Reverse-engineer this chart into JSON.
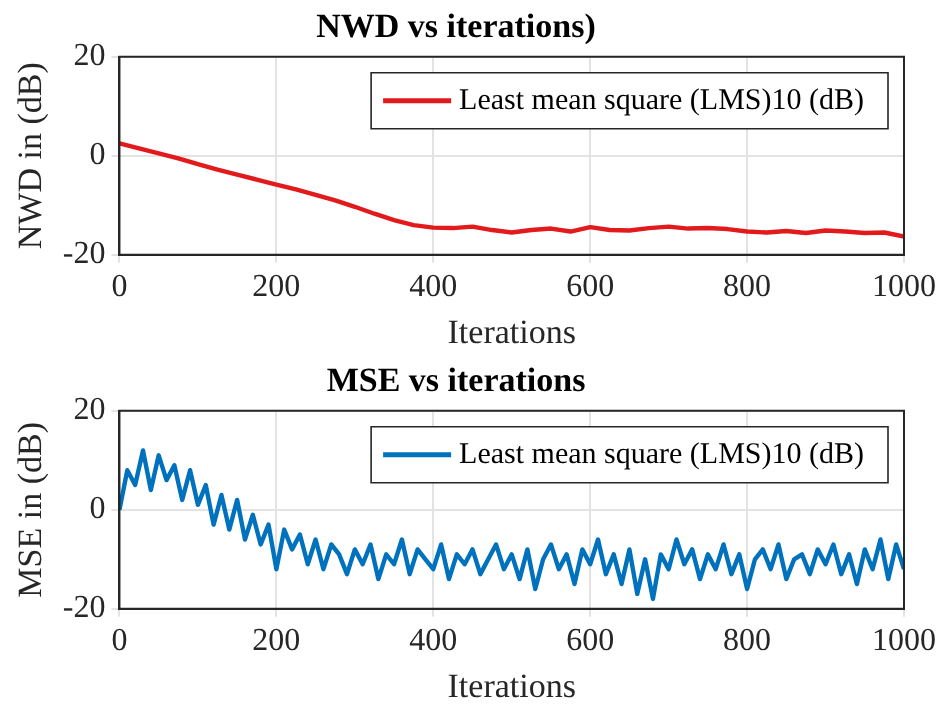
{
  "chart_data": [
    {
      "type": "line",
      "title": "NWD vs iterations)",
      "xlabel": "Iterations",
      "ylabel": "NWD in (dB)",
      "xlim": [
        0,
        1000
      ],
      "xticks": [
        0,
        200,
        400,
        600,
        800,
        1000
      ],
      "ylim": [
        -20,
        20
      ],
      "yticks": [
        -20,
        0,
        20
      ],
      "grid": true,
      "legend": "top right",
      "marker": "none",
      "line_style": "solid",
      "x": [
        0,
        25,
        50,
        75,
        100,
        125,
        150,
        175,
        200,
        225,
        250,
        275,
        300,
        325,
        350,
        375,
        400,
        425,
        450,
        475,
        500,
        525,
        550,
        575,
        600,
        625,
        650,
        675,
        700,
        725,
        750,
        775,
        800,
        825,
        850,
        875,
        900,
        925,
        950,
        975,
        1000
      ],
      "series": [
        {
          "name": "Least mean square (LMS)10 (dB)",
          "color": "#e31a1c",
          "values": [
            2.5,
            1.5,
            0.5,
            -0.5,
            -1.7,
            -2.8,
            -3.8,
            -4.8,
            -5.8,
            -6.8,
            -7.9,
            -9,
            -10.3,
            -11.7,
            -13,
            -14,
            -14.5,
            -14.6,
            -14.3,
            -15,
            -15.5,
            -15,
            -14.7,
            -15.3,
            -14.4,
            -15,
            -15.1,
            -14.6,
            -14.3,
            -14.7,
            -14.6,
            -14.8,
            -15.3,
            -15.5,
            -15.2,
            -15.6,
            -15.1,
            -15.3,
            -15.6,
            -15.5,
            -16.3
          ]
        }
      ]
    },
    {
      "type": "line",
      "title": "MSE vs iterations",
      "xlabel": "Iterations",
      "ylabel": "MSE in (dB)",
      "xlim": [
        0,
        1000
      ],
      "xticks": [
        0,
        200,
        400,
        600,
        800,
        1000
      ],
      "ylim": [
        -20,
        20
      ],
      "yticks": [
        -20,
        0,
        20
      ],
      "grid": true,
      "legend": "top right",
      "marker": "none",
      "line_style": "solid",
      "x": [
        0,
        10,
        20,
        30,
        40,
        50,
        60,
        70,
        80,
        90,
        100,
        110,
        120,
        130,
        140,
        150,
        160,
        170,
        180,
        190,
        200,
        210,
        220,
        230,
        240,
        250,
        260,
        270,
        280,
        290,
        300,
        310,
        320,
        330,
        340,
        350,
        360,
        370,
        380,
        390,
        400,
        410,
        420,
        430,
        440,
        450,
        460,
        470,
        480,
        490,
        500,
        510,
        520,
        530,
        540,
        550,
        560,
        570,
        580,
        590,
        600,
        610,
        620,
        630,
        640,
        650,
        660,
        670,
        680,
        690,
        700,
        710,
        720,
        730,
        740,
        750,
        760,
        770,
        780,
        790,
        800,
        810,
        820,
        830,
        840,
        850,
        860,
        870,
        880,
        890,
        900,
        910,
        920,
        930,
        940,
        950,
        960,
        970,
        980,
        990,
        1000
      ],
      "series": [
        {
          "name": "Least mean square (LMS)10 (dB)",
          "color": "#0072bd",
          "values": [
            0,
            8,
            5,
            12,
            4,
            11,
            6,
            9,
            2,
            8,
            1,
            5,
            -3,
            3,
            -4,
            2,
            -6,
            -1,
            -7,
            -3,
            -12,
            -4,
            -8,
            -5,
            -11,
            -6,
            -12,
            -7,
            -9,
            -13,
            -8,
            -11,
            -7,
            -14,
            -9,
            -11,
            -6,
            -13,
            -8,
            -10,
            -12,
            -7,
            -14,
            -9,
            -11,
            -8,
            -13,
            -10,
            -7,
            -12,
            -9,
            -14,
            -8,
            -16,
            -10,
            -7,
            -12,
            -9,
            -15,
            -8,
            -11,
            -6,
            -13,
            -9,
            -15,
            -8,
            -17,
            -10,
            -18,
            -9,
            -12,
            -6,
            -11,
            -8,
            -14,
            -9,
            -12,
            -7,
            -13,
            -9,
            -16,
            -10,
            -8,
            -12,
            -7,
            -14,
            -10,
            -9,
            -13,
            -8,
            -11,
            -7,
            -13,
            -9,
            -15,
            -8,
            -12,
            -6,
            -14,
            -7,
            -12
          ]
        }
      ]
    }
  ]
}
